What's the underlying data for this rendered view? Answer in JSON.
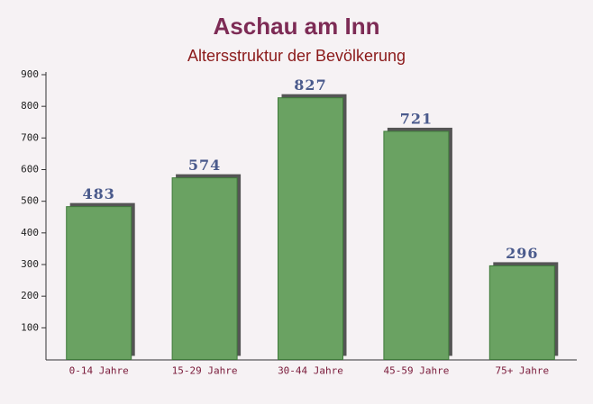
{
  "chart_data": {
    "type": "bar",
    "title": "Aschau am Inn",
    "subtitle": "Altersstruktur der Bevölkerung",
    "categories": [
      "0-14 Jahre",
      "15-29 Jahre",
      "30-44 Jahre",
      "45-59 Jahre",
      "75+ Jahre"
    ],
    "values": [
      483,
      574,
      827,
      721,
      296
    ],
    "color": "#6aa262",
    "ylim": [
      0,
      900
    ],
    "yticks": [
      100,
      200,
      300,
      400,
      500,
      600,
      700,
      800,
      900
    ],
    "grid": false
  }
}
